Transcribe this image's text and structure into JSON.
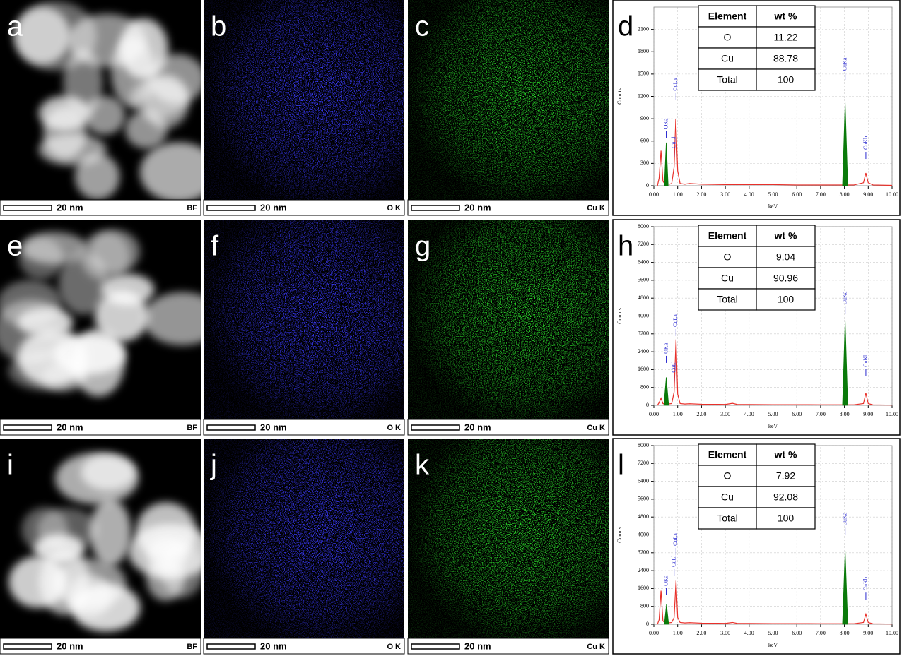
{
  "image_panels": [
    {
      "label": "a",
      "scale_bar": "20 nm",
      "channel": "BF",
      "color": "#ffffff"
    },
    {
      "label": "b",
      "scale_bar": "20 nm",
      "channel": "O K",
      "color": "#3a3aff"
    },
    {
      "label": "c",
      "scale_bar": "20 nm",
      "channel": "Cu K",
      "color": "#2bd62b"
    },
    {
      "label": "e",
      "scale_bar": "20 nm",
      "channel": "BF",
      "color": "#ffffff"
    },
    {
      "label": "f",
      "scale_bar": "20 nm",
      "channel": "O K",
      "color": "#3a3aff"
    },
    {
      "label": "g",
      "scale_bar": "20 nm",
      "channel": "Cu K",
      "color": "#2bd62b"
    },
    {
      "label": "i",
      "scale_bar": "20 nm",
      "channel": "BF",
      "color": "#ffffff"
    },
    {
      "label": "j",
      "scale_bar": "20 nm",
      "channel": "O K",
      "color": "#3a3aff"
    },
    {
      "label": "k",
      "scale_bar": "20 nm",
      "channel": "Cu K",
      "color": "#2bd62b"
    }
  ],
  "chart_data": [
    {
      "type": "line",
      "label": "d",
      "xlabel": "keV",
      "ylabel": "Counts",
      "grid": true,
      "xlim": [
        0,
        10
      ],
      "ylim": [
        0,
        2400
      ],
      "xticks": [
        {
          "value": 0,
          "label": "0.00"
        },
        {
          "value": 1,
          "label": "1.00"
        },
        {
          "value": 2,
          "label": "2.00"
        },
        {
          "value": 3,
          "label": "3.00"
        },
        {
          "value": 4,
          "label": "4.00"
        },
        {
          "value": 5,
          "label": "5.00"
        },
        {
          "value": 6,
          "label": "6.00"
        },
        {
          "value": 7,
          "label": "7.00"
        },
        {
          "value": 8,
          "label": "8.00"
        },
        {
          "value": 9,
          "label": "9.00"
        },
        {
          "value": 10,
          "label": "10.00"
        }
      ],
      "yticks": [
        0,
        300,
        600,
        900,
        1200,
        1500,
        1800,
        2100
      ],
      "series": [
        {
          "color": "#e8302a",
          "x": [
            0.15,
            0.22,
            0.3,
            0.38,
            0.45,
            0.55,
            0.65,
            0.75,
            0.85,
            0.92,
            1.0,
            1.1,
            1.3,
            1.5,
            2,
            3,
            4,
            5,
            6,
            7,
            7.7,
            8.4,
            8.8,
            8.9,
            9.0,
            9.2,
            10
          ],
          "values": [
            0,
            100,
            470,
            60,
            30,
            30,
            20,
            30,
            250,
            900,
            200,
            30,
            20,
            30,
            20,
            15,
            15,
            15,
            10,
            10,
            10,
            10,
            40,
            170,
            40,
            10,
            5
          ]
        },
        {
          "color": "#0a7a0a",
          "x": [
            0.44,
            0.52,
            0.6,
            0.7,
            7.92,
            8.03,
            8.14
          ],
          "values": [
            0,
            580,
            0,
            null,
            0,
            1120,
            0
          ]
        }
      ],
      "annotations": [
        {
          "text": "OKa",
          "x": 0.52,
          "y": 640
        },
        {
          "text": "CuLl",
          "x": 0.85,
          "y": 380
        },
        {
          "text": "CuLa",
          "x": 0.93,
          "y": 1150
        },
        {
          "text": "CuKa",
          "x": 8.03,
          "y": 1420
        },
        {
          "text": "CuKb",
          "x": 8.9,
          "y": 360
        }
      ],
      "table": {
        "header": [
          "Element",
          "wt %"
        ],
        "rows": [
          [
            "O",
            11.22
          ],
          [
            "Cu",
            88.78
          ],
          [
            "Total",
            100
          ]
        ]
      }
    },
    {
      "type": "line",
      "label": "h",
      "xlabel": "keV",
      "ylabel": "Counts",
      "grid": true,
      "xlim": [
        0,
        10
      ],
      "ylim": [
        0,
        8000
      ],
      "xticks": [
        {
          "value": 0,
          "label": "0.00"
        },
        {
          "value": 1,
          "label": "1.00"
        },
        {
          "value": 2,
          "label": "2.00"
        },
        {
          "value": 3,
          "label": "3.00"
        },
        {
          "value": 4,
          "label": "4.00"
        },
        {
          "value": 5,
          "label": "5.00"
        },
        {
          "value": 6,
          "label": "6.00"
        },
        {
          "value": 7,
          "label": "7.00"
        },
        {
          "value": 8,
          "label": "8.00"
        },
        {
          "value": 9,
          "label": "9.00"
        },
        {
          "value": 10,
          "label": "10.00"
        }
      ],
      "yticks": [
        0,
        800,
        1600,
        2400,
        3200,
        4000,
        4800,
        5600,
        6400,
        7200,
        8000
      ],
      "series": [
        {
          "color": "#e8302a",
          "x": [
            0.15,
            0.22,
            0.3,
            0.38,
            0.45,
            0.6,
            0.75,
            0.85,
            0.93,
            1.0,
            1.1,
            1.3,
            1.5,
            2,
            3,
            3.3,
            3.5,
            4,
            5,
            6,
            7,
            7.7,
            8.4,
            8.8,
            8.9,
            9.0,
            9.2,
            10
          ],
          "values": [
            0,
            120,
            320,
            80,
            60,
            60,
            80,
            600,
            2950,
            500,
            80,
            60,
            70,
            50,
            40,
            90,
            40,
            35,
            30,
            30,
            25,
            25,
            25,
            80,
            550,
            80,
            20,
            10
          ]
        },
        {
          "color": "#0a7a0a",
          "x": [
            0.42,
            0.52,
            0.62,
            0.7,
            7.92,
            8.03,
            8.14
          ],
          "values": [
            0,
            1250,
            0,
            null,
            0,
            3800,
            0
          ]
        }
      ],
      "annotations": [
        {
          "text": "OKa",
          "x": 0.52,
          "y": 1900
        },
        {
          "text": "CuLl",
          "x": 0.85,
          "y": 1050
        },
        {
          "text": "CuLa",
          "x": 0.93,
          "y": 3100
        },
        {
          "text": "CuKa",
          "x": 8.03,
          "y": 4100
        },
        {
          "text": "CuKb",
          "x": 8.9,
          "y": 1300
        }
      ],
      "table": {
        "header": [
          "Element",
          "wt %"
        ],
        "rows": [
          [
            "O",
            9.04
          ],
          [
            "Cu",
            90.96
          ],
          [
            "Total",
            100
          ]
        ]
      }
    },
    {
      "type": "line",
      "label": "l",
      "xlabel": "keV",
      "ylabel": "Counts",
      "grid": true,
      "xlim": [
        0,
        10
      ],
      "ylim": [
        0,
        8000
      ],
      "xticks": [
        {
          "value": 0,
          "label": "0.00"
        },
        {
          "value": 1,
          "label": "1.00"
        },
        {
          "value": 2,
          "label": "2.00"
        },
        {
          "value": 3,
          "label": "3.00"
        },
        {
          "value": 4,
          "label": "4.00"
        },
        {
          "value": 5,
          "label": "5.00"
        },
        {
          "value": 6,
          "label": "6.00"
        },
        {
          "value": 7,
          "label": "7.00"
        },
        {
          "value": 8,
          "label": "8.00"
        },
        {
          "value": 9,
          "label": "9.00"
        },
        {
          "value": 10,
          "label": "10.00"
        }
      ],
      "yticks": [
        0,
        800,
        1600,
        2400,
        3200,
        4000,
        4800,
        5600,
        6400,
        7200,
        8000
      ],
      "series": [
        {
          "color": "#e8302a",
          "x": [
            0.15,
            0.22,
            0.3,
            0.38,
            0.45,
            0.6,
            0.75,
            0.85,
            0.93,
            1.0,
            1.1,
            1.3,
            1.5,
            2,
            3,
            3.3,
            3.5,
            4,
            5,
            6,
            7,
            7.7,
            8.4,
            8.8,
            8.9,
            9.0,
            9.2,
            10
          ],
          "values": [
            0,
            200,
            1500,
            150,
            80,
            60,
            80,
            300,
            1950,
            300,
            80,
            60,
            70,
            50,
            40,
            80,
            40,
            35,
            30,
            30,
            25,
            25,
            25,
            80,
            450,
            80,
            20,
            10
          ]
        },
        {
          "color": "#0a7a0a",
          "x": [
            0.44,
            0.53,
            0.62,
            0.7,
            7.92,
            8.03,
            8.14
          ],
          "values": [
            0,
            900,
            0,
            null,
            0,
            3300,
            0
          ]
        }
      ],
      "annotations": [
        {
          "text": "OKa",
          "x": 0.52,
          "y": 1300
        },
        {
          "text": "CuLl",
          "x": 0.85,
          "y": 2150
        },
        {
          "text": "CuLa",
          "x": 0.93,
          "y": 3100
        },
        {
          "text": "CuKa",
          "x": 8.03,
          "y": 4000
        },
        {
          "text": "CuKb",
          "x": 8.9,
          "y": 1100
        }
      ],
      "table": {
        "header": [
          "Element",
          "wt %"
        ],
        "rows": [
          [
            "O",
            7.92
          ],
          [
            "Cu",
            92.08
          ],
          [
            "Total",
            100
          ]
        ]
      }
    }
  ]
}
